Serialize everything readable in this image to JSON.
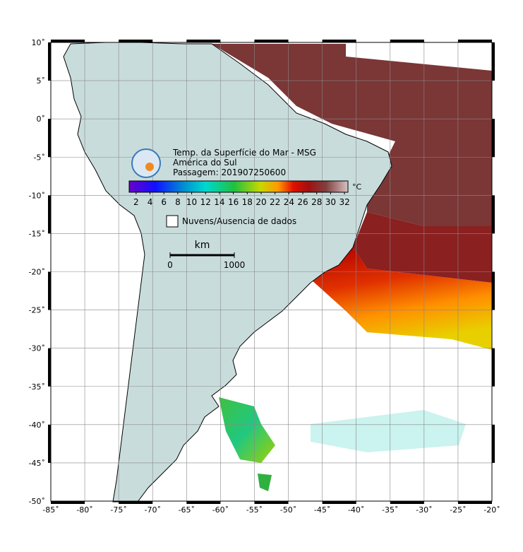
{
  "map": {
    "title": "Temp. da Superfície do Mar - MSG",
    "region": "América do Sul",
    "pass": "Passagem: 201907250600",
    "xlim": [
      -85,
      -20
    ],
    "ylim": [
      -50,
      10
    ],
    "xticks": [
      {
        "value": -85,
        "label": "-85˚"
      },
      {
        "value": -80,
        "label": "-80˚"
      },
      {
        "value": -75,
        "label": "-75˚"
      },
      {
        "value": -70,
        "label": "-70˚"
      },
      {
        "value": -65,
        "label": "-65˚"
      },
      {
        "value": -60,
        "label": "-60˚"
      },
      {
        "value": -55,
        "label": "-55˚"
      },
      {
        "value": -50,
        "label": "-50˚"
      },
      {
        "value": -45,
        "label": "-45˚"
      },
      {
        "value": -40,
        "label": "-40˚"
      },
      {
        "value": -35,
        "label": "-35˚"
      },
      {
        "value": -30,
        "label": "-30˚"
      },
      {
        "value": -25,
        "label": "-25˚"
      },
      {
        "value": -20,
        "label": "-20˚"
      }
    ],
    "yticks": [
      {
        "value": 10,
        "label": "10˚"
      },
      {
        "value": 5,
        "label": "5˚"
      },
      {
        "value": 0,
        "label": "0˚"
      },
      {
        "value": -5,
        "label": "-5˚"
      },
      {
        "value": -10,
        "label": "-10˚"
      },
      {
        "value": -15,
        "label": "-15˚"
      },
      {
        "value": -20,
        "label": "-20˚"
      },
      {
        "value": -25,
        "label": "-25˚"
      },
      {
        "value": -30,
        "label": "-30˚"
      },
      {
        "value": -35,
        "label": "-35˚"
      },
      {
        "value": -40,
        "label": "-40˚"
      },
      {
        "value": -45,
        "label": "-45˚"
      },
      {
        "value": -50,
        "label": "-50˚"
      }
    ],
    "colorbar": {
      "range": [
        1,
        32.5
      ],
      "ticks": [
        2,
        4,
        6,
        8,
        10,
        12,
        14,
        16,
        18,
        20,
        22,
        24,
        26,
        28,
        30,
        32
      ],
      "unit": "°C"
    },
    "legend": "Nuvens/Ausencia de dados",
    "scale": {
      "unit": "km",
      "ticks": [
        0,
        1000
      ]
    }
  }
}
